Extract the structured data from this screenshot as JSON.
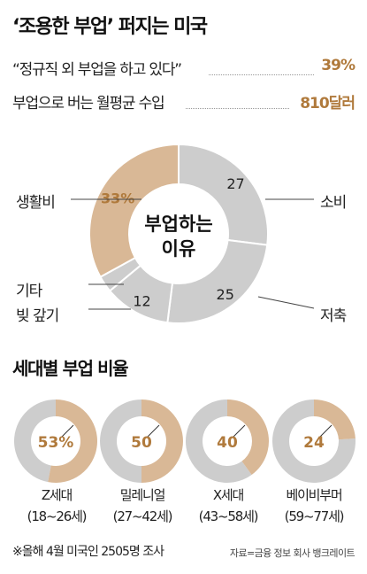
{
  "title": "‘조용한 부업’ 퍼지는 미국",
  "stats": [
    {
      "label": "“정규직 외 부업을 하고 있다”",
      "value": "39%"
    },
    {
      "label": "부업으로 버는 월평균 수입",
      "value": "810달러"
    }
  ],
  "colors": {
    "accent": "#d9b896",
    "gray": "#cdcdcd",
    "value_text": "#b07a3c"
  },
  "chart_data": [
    {
      "type": "pie",
      "center_label": [
        "부업하는",
        "이유"
      ],
      "slices": [
        {
          "label": "생활비",
          "value": 33,
          "value_label": "33%"
        },
        {
          "label": "소비",
          "value": 27,
          "value_label": "27"
        },
        {
          "label": "저축",
          "value": 25,
          "value_label": "25"
        },
        {
          "label": "빚 갚기",
          "value": 12,
          "value_label": "12"
        },
        {
          "label": "기타",
          "value": 3,
          "value_label": ""
        }
      ]
    },
    {
      "type": "pie",
      "title": "세대별 부업 비율",
      "items": [
        {
          "name": "Z세대",
          "range": "(18~26세)",
          "value": 53,
          "value_label": "53%"
        },
        {
          "name": "밀레니얼",
          "range": "(27~42세)",
          "value": 50,
          "value_label": "50"
        },
        {
          "name": "X세대",
          "range": "(43~58세)",
          "value": 40,
          "value_label": "40"
        },
        {
          "name": "베이비부머",
          "range": "(59~77세)",
          "value": 24,
          "value_label": "24"
        }
      ]
    }
  ],
  "footnote": "※올해 4월 미국인 2505명 조사",
  "source": "자료=금융 정보 회사 뱅크레이트"
}
